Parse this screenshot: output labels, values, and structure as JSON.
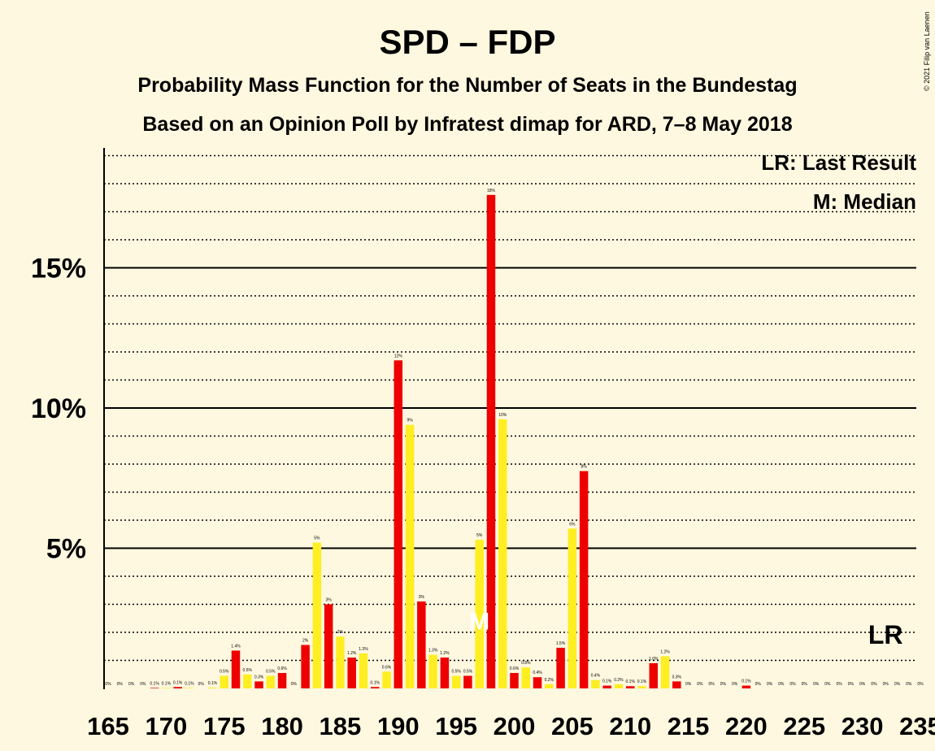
{
  "title": "SPD – FDP",
  "subtitle1": "Probability Mass Function for the Number of Seats in the Bundestag",
  "subtitle2": "Based on an Opinion Poll by Infratest dimap for ARD, 7–8 May 2018",
  "copyright": "© 2021 Filip van Laenen",
  "legend": {
    "lr": "LR: Last Result",
    "median": "M: Median"
  },
  "markers": {
    "median_label": "M",
    "median_seat": 197,
    "lr_label": "LR",
    "lr_seat": 232
  },
  "colors": {
    "background": "#FFF8E0",
    "red": "#EE0000",
    "yellow": "#FFEE22",
    "axis": "#000000"
  },
  "chart_data": {
    "type": "bar",
    "xlabel": "Number of seats",
    "ylabel": "Probability",
    "xlim": [
      165,
      235
    ],
    "ylim": [
      0,
      19
    ],
    "x_ticks": [
      {
        "value": 165,
        "label": "165"
      },
      {
        "value": 170,
        "label": "170"
      },
      {
        "value": 175,
        "label": "175"
      },
      {
        "value": 180,
        "label": "180"
      },
      {
        "value": 185,
        "label": "185"
      },
      {
        "value": 190,
        "label": "190"
      },
      {
        "value": 195,
        "label": "195"
      },
      {
        "value": 200,
        "label": "200"
      },
      {
        "value": 205,
        "label": "205"
      },
      {
        "value": 210,
        "label": "210"
      },
      {
        "value": 215,
        "label": "215"
      },
      {
        "value": 220,
        "label": "220"
      },
      {
        "value": 225,
        "label": "225"
      },
      {
        "value": 230,
        "label": "230"
      },
      {
        "value": 235,
        "label": "235"
      }
    ],
    "y_ticks": [
      {
        "value": 5,
        "label": "5%"
      },
      {
        "value": 10,
        "label": "10%"
      },
      {
        "value": 15,
        "label": "15%"
      }
    ],
    "series": [
      {
        "seats": 165,
        "value": 0.0,
        "label": "0%",
        "color": "red"
      },
      {
        "seats": 166,
        "value": 0.0,
        "label": "0%",
        "color": "yellow"
      },
      {
        "seats": 167,
        "value": 0.0,
        "label": "0%",
        "color": "red"
      },
      {
        "seats": 168,
        "value": 0.0,
        "label": "0%",
        "color": "yellow"
      },
      {
        "seats": 169,
        "value": 0.02,
        "label": "0.1%",
        "color": "red"
      },
      {
        "seats": 170,
        "value": 0.02,
        "label": "0.1%",
        "color": "yellow"
      },
      {
        "seats": 171,
        "value": 0.05,
        "label": "0.1%",
        "color": "red"
      },
      {
        "seats": 172,
        "value": 0.02,
        "label": "0.1%",
        "color": "yellow"
      },
      {
        "seats": 173,
        "value": 0.0,
        "label": "0%",
        "color": "red"
      },
      {
        "seats": 174,
        "value": 0.03,
        "label": "0.1%",
        "color": "yellow"
      },
      {
        "seats": 175,
        "value": 0.45,
        "label": "0.5%",
        "color": "yellow"
      },
      {
        "seats": 176,
        "value": 1.35,
        "label": "1.4%",
        "color": "red"
      },
      {
        "seats": 177,
        "value": 0.5,
        "label": "0.5%",
        "color": "yellow"
      },
      {
        "seats": 178,
        "value": 0.25,
        "label": "0.3%",
        "color": "red"
      },
      {
        "seats": 179,
        "value": 0.45,
        "label": "0.5%",
        "color": "yellow"
      },
      {
        "seats": 180,
        "value": 0.55,
        "label": "0.6%",
        "color": "red"
      },
      {
        "seats": 181,
        "value": 0.0,
        "label": "0%",
        "color": "yellow"
      },
      {
        "seats": 182,
        "value": 1.55,
        "label": "2%",
        "color": "red"
      },
      {
        "seats": 183,
        "value": 5.2,
        "label": "5%",
        "color": "yellow"
      },
      {
        "seats": 184,
        "value": 3.0,
        "label": "3%",
        "color": "red"
      },
      {
        "seats": 185,
        "value": 1.85,
        "label": "2%",
        "color": "yellow"
      },
      {
        "seats": 186,
        "value": 1.1,
        "label": "1.2%",
        "color": "red"
      },
      {
        "seats": 187,
        "value": 1.25,
        "label": "1.3%",
        "color": "yellow"
      },
      {
        "seats": 188,
        "value": 0.05,
        "label": "0.1%",
        "color": "red"
      },
      {
        "seats": 189,
        "value": 0.6,
        "label": "0.6%",
        "color": "yellow"
      },
      {
        "seats": 190,
        "value": 11.7,
        "label": "12%",
        "color": "red"
      },
      {
        "seats": 191,
        "value": 9.4,
        "label": "9%",
        "color": "yellow"
      },
      {
        "seats": 192,
        "value": 3.1,
        "label": "3%",
        "color": "red"
      },
      {
        "seats": 193,
        "value": 1.2,
        "label": "1.3%",
        "color": "yellow"
      },
      {
        "seats": 194,
        "value": 1.1,
        "label": "1.2%",
        "color": "red"
      },
      {
        "seats": 195,
        "value": 0.45,
        "label": "0.5%",
        "color": "yellow"
      },
      {
        "seats": 196,
        "value": 0.45,
        "label": "0.5%",
        "color": "red"
      },
      {
        "seats": 197,
        "value": 5.3,
        "label": "5%",
        "color": "yellow"
      },
      {
        "seats": 198,
        "value": 17.6,
        "label": "18%",
        "color": "red"
      },
      {
        "seats": 199,
        "value": 9.6,
        "label": "10%",
        "color": "yellow"
      },
      {
        "seats": 200,
        "value": 0.55,
        "label": "0.6%",
        "color": "red"
      },
      {
        "seats": 201,
        "value": 0.75,
        "label": "0.8%",
        "color": "yellow"
      },
      {
        "seats": 202,
        "value": 0.4,
        "label": "0.4%",
        "color": "red"
      },
      {
        "seats": 203,
        "value": 0.15,
        "label": "0.2%",
        "color": "yellow"
      },
      {
        "seats": 204,
        "value": 1.45,
        "label": "1.5%",
        "color": "red"
      },
      {
        "seats": 205,
        "value": 5.7,
        "label": "6%",
        "color": "yellow"
      },
      {
        "seats": 206,
        "value": 7.75,
        "label": "8%",
        "color": "red"
      },
      {
        "seats": 207,
        "value": 0.3,
        "label": "0.4%",
        "color": "yellow"
      },
      {
        "seats": 208,
        "value": 0.1,
        "label": "0.1%",
        "color": "red"
      },
      {
        "seats": 209,
        "value": 0.15,
        "label": "0.2%",
        "color": "yellow"
      },
      {
        "seats": 210,
        "value": 0.08,
        "label": "0.1%",
        "color": "red"
      },
      {
        "seats": 211,
        "value": 0.08,
        "label": "0.1%",
        "color": "yellow"
      },
      {
        "seats": 212,
        "value": 0.9,
        "label": "1.0%",
        "color": "red"
      },
      {
        "seats": 213,
        "value": 1.15,
        "label": "1.2%",
        "color": "yellow"
      },
      {
        "seats": 214,
        "value": 0.25,
        "label": "0.3%",
        "color": "red"
      },
      {
        "seats": 215,
        "value": 0.0,
        "label": "0%",
        "color": "yellow"
      },
      {
        "seats": 216,
        "value": 0.0,
        "label": "0%",
        "color": "red"
      },
      {
        "seats": 217,
        "value": 0.0,
        "label": "0%",
        "color": "yellow"
      },
      {
        "seats": 218,
        "value": 0.0,
        "label": "0%",
        "color": "red"
      },
      {
        "seats": 219,
        "value": 0.0,
        "label": "0%",
        "color": "yellow"
      },
      {
        "seats": 220,
        "value": 0.1,
        "label": "0.1%",
        "color": "red"
      },
      {
        "seats": 221,
        "value": 0.0,
        "label": "0%",
        "color": "yellow"
      },
      {
        "seats": 222,
        "value": 0.0,
        "label": "0%",
        "color": "red"
      },
      {
        "seats": 223,
        "value": 0.0,
        "label": "0%",
        "color": "yellow"
      },
      {
        "seats": 224,
        "value": 0.0,
        "label": "0%",
        "color": "red"
      },
      {
        "seats": 225,
        "value": 0.0,
        "label": "0%",
        "color": "yellow"
      },
      {
        "seats": 226,
        "value": 0.0,
        "label": "0%",
        "color": "red"
      },
      {
        "seats": 227,
        "value": 0.0,
        "label": "0%",
        "color": "yellow"
      },
      {
        "seats": 228,
        "value": 0.0,
        "label": "0%",
        "color": "red"
      },
      {
        "seats": 229,
        "value": 0.0,
        "label": "0%",
        "color": "yellow"
      },
      {
        "seats": 230,
        "value": 0.0,
        "label": "0%",
        "color": "red"
      },
      {
        "seats": 231,
        "value": 0.0,
        "label": "0%",
        "color": "yellow"
      },
      {
        "seats": 232,
        "value": 0.0,
        "label": "0%",
        "color": "red"
      },
      {
        "seats": 233,
        "value": 0.0,
        "label": "0%",
        "color": "yellow"
      },
      {
        "seats": 234,
        "value": 0.0,
        "label": "0%",
        "color": "red"
      },
      {
        "seats": 235,
        "value": 0.0,
        "label": "0%",
        "color": "yellow"
      }
    ]
  }
}
